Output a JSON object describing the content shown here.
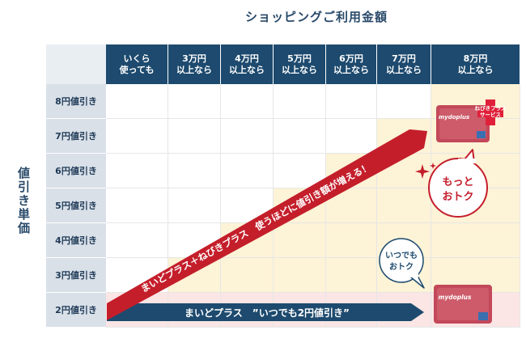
{
  "title": "ショッピングご利用金額",
  "vertical_label": "値引き単価",
  "columns": [
    "いくら\n使っても",
    "3万円\n以上なら",
    "4万円\n以上なら",
    "5万円\n以上なら",
    "6万円\n以上なら",
    "7万円\n以上なら",
    "8万円\n以上なら"
  ],
  "rows": [
    "8円値引き",
    "7円値引き",
    "6円値引き",
    "5円値引き",
    "4円値引き",
    "3円値引き",
    "2円値引き"
  ],
  "blue_arrow_text": "まいどプラス　”いつでも2円値引き”",
  "red_arrow_text": "まいどプラス＋ねびきプラス　使うほどに値引き額が増える！",
  "bubble_big": [
    "もっと",
    "おトク"
  ],
  "bubble_small": [
    "いつでも",
    "おトク"
  ],
  "card_badge": [
    "ねびきプラス",
    "サービス"
  ],
  "card_brand": "mydoplus",
  "colors": {
    "navy": "#1d4a6e",
    "red": "#c41e2b",
    "yellow": "#fdf3d6",
    "pink": "#fbe5e5"
  }
}
